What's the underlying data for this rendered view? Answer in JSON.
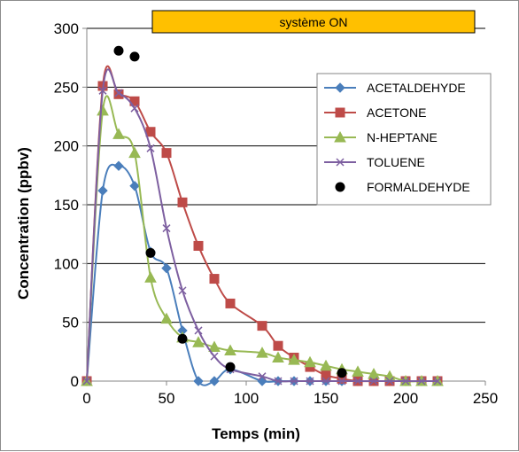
{
  "chart_data": {
    "type": "line",
    "banner": "système  ON",
    "xlabel": "Temps (min)",
    "ylabel": "Concentration (ppbv)",
    "xlim": [
      0,
      250
    ],
    "ylim": [
      0,
      300
    ],
    "xticks": [
      0,
      50,
      100,
      150,
      200,
      250
    ],
    "yticks": [
      0,
      50,
      100,
      150,
      200,
      250,
      300
    ],
    "grid": "horizontal",
    "legend_position": "right",
    "series": [
      {
        "name": "ACETALDEHYDE",
        "color": "#4a7ebb",
        "marker": "diamond",
        "smooth": true,
        "x": [
          0,
          10,
          20,
          30,
          40,
          50,
          60,
          70,
          80,
          90,
          110,
          120,
          130,
          140,
          150,
          160,
          170,
          180,
          190,
          200,
          210,
          220
        ],
        "y": [
          0,
          162,
          183,
          166,
          110,
          96,
          43,
          0,
          0,
          10,
          0,
          0,
          0,
          0,
          0,
          0,
          0,
          0,
          0,
          0,
          0,
          0
        ]
      },
      {
        "name": "ACETONE",
        "color": "#be4b48",
        "marker": "square",
        "smooth": true,
        "x": [
          0,
          10,
          20,
          30,
          40,
          50,
          60,
          70,
          80,
          90,
          110,
          120,
          130,
          140,
          150,
          160,
          170,
          180,
          190,
          200,
          210,
          220
        ],
        "y": [
          0,
          251,
          244,
          238,
          212,
          194,
          152,
          115,
          87,
          66,
          47,
          30,
          20,
          12,
          5,
          2,
          0,
          0,
          0,
          0,
          0,
          0
        ]
      },
      {
        "name": "N-HEPTANE",
        "color": "#98b954",
        "marker": "triangle",
        "smooth": true,
        "x": [
          0,
          10,
          20,
          30,
          40,
          50,
          60,
          70,
          80,
          90,
          110,
          120,
          130,
          140,
          150,
          160,
          170,
          180,
          190,
          200,
          210,
          220
        ],
        "y": [
          0,
          230,
          210,
          194,
          88,
          53,
          37,
          33,
          29,
          26,
          24,
          20,
          18,
          16,
          13,
          10,
          8,
          6,
          4,
          0,
          0,
          0
        ]
      },
      {
        "name": "TOLUENE",
        "color": "#7d5fa0",
        "marker": "x",
        "smooth": true,
        "x": [
          0,
          10,
          20,
          30,
          40,
          50,
          60,
          70,
          80,
          90,
          110,
          120,
          130,
          140,
          150,
          160,
          170,
          180,
          190,
          200,
          210,
          220
        ],
        "y": [
          0,
          247,
          245,
          232,
          198,
          130,
          77,
          43,
          21,
          10,
          4,
          0,
          0,
          0,
          0,
          0,
          0,
          0,
          0,
          0,
          0,
          0
        ]
      },
      {
        "name": "FORMALDEHYDE",
        "color": "#000000",
        "marker": "circle",
        "smooth": false,
        "line": false,
        "x": [
          20,
          30,
          40,
          60,
          90,
          160
        ],
        "y": [
          281,
          276,
          109,
          36,
          12,
          7
        ]
      }
    ]
  }
}
